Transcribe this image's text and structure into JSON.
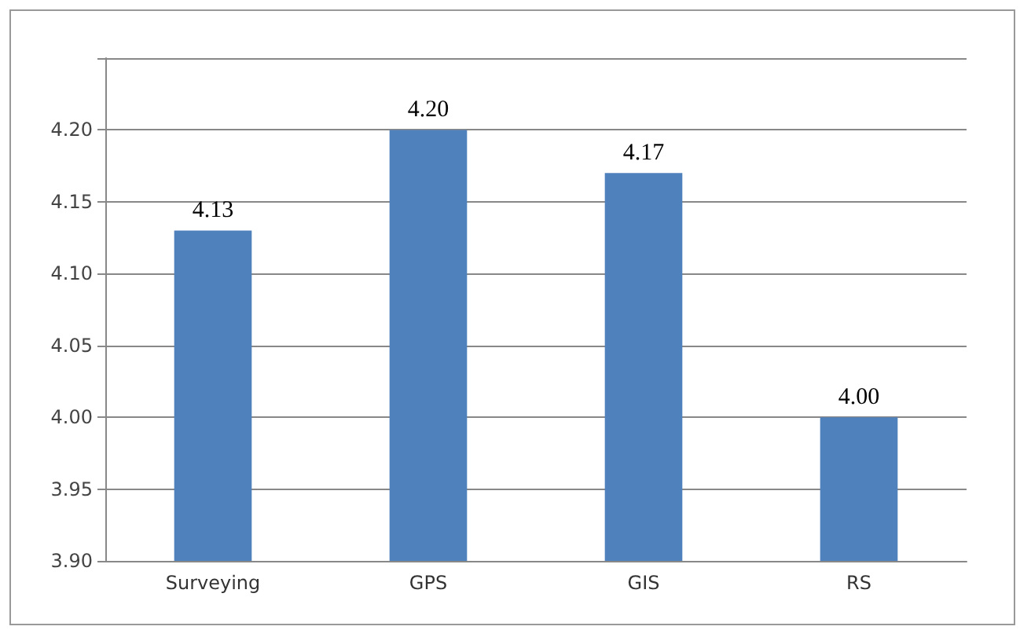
{
  "chart_data": {
    "type": "bar",
    "categories": [
      "Surveying",
      "GPS",
      "GIS",
      "RS"
    ],
    "values": [
      4.13,
      4.2,
      4.17,
      4.0
    ],
    "value_labels": [
      "4.13",
      "4.20",
      "4.17",
      "4.00"
    ],
    "color": "#4f81bd",
    "ylim": [
      3.9,
      4.25
    ],
    "yticks": [
      {
        "value": 3.9,
        "label": "3.90"
      },
      {
        "value": 3.95,
        "label": "3.95"
      },
      {
        "value": 4.0,
        "label": "4.00"
      },
      {
        "value": 4.05,
        "label": "4.05"
      },
      {
        "value": 4.1,
        "label": "4.10"
      },
      {
        "value": 4.15,
        "label": "4.15"
      },
      {
        "value": 4.2,
        "label": "4.20"
      },
      {
        "value": 4.25,
        "label": null
      }
    ],
    "grid": "y"
  }
}
